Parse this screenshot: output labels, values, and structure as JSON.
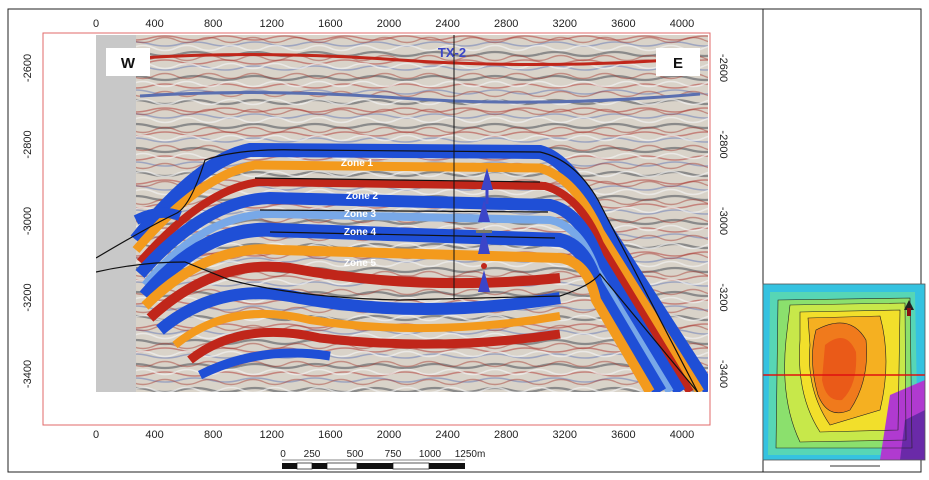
{
  "section": {
    "top_axis_labels": [
      "0",
      "400",
      "800",
      "1200",
      "1600",
      "2000",
      "2400",
      "2800",
      "3200",
      "3600",
      "4000"
    ],
    "bottom_axis_labels": [
      "0",
      "400",
      "800",
      "1200",
      "1600",
      "2000",
      "2400",
      "2800",
      "3200",
      "3600",
      "4000"
    ],
    "left_axis_labels": [
      "-2600",
      "-2800",
      "-3000",
      "-3200",
      "-3400"
    ],
    "right_axis_labels": [
      "-2600",
      "-2800",
      "-3000",
      "-3200",
      "-3400"
    ],
    "west_label": "W",
    "east_label": "E",
    "well_label": "TX-2",
    "zones": [
      "Zone 1",
      "Zone 2",
      "Zone 3",
      "Zone 4",
      "Zone 5"
    ]
  },
  "scale_bar": {
    "labels": [
      "0",
      "250",
      "500",
      "750",
      "1000",
      "1250m"
    ]
  },
  "colors": {
    "seismic_red": "#c0261a",
    "seismic_orange": "#f39a1d",
    "seismic_blue": "#1f4fd6",
    "seismic_light_blue": "#78a8e8",
    "well_arrow": "#3b45c8",
    "horizon_line": "#111111"
  }
}
